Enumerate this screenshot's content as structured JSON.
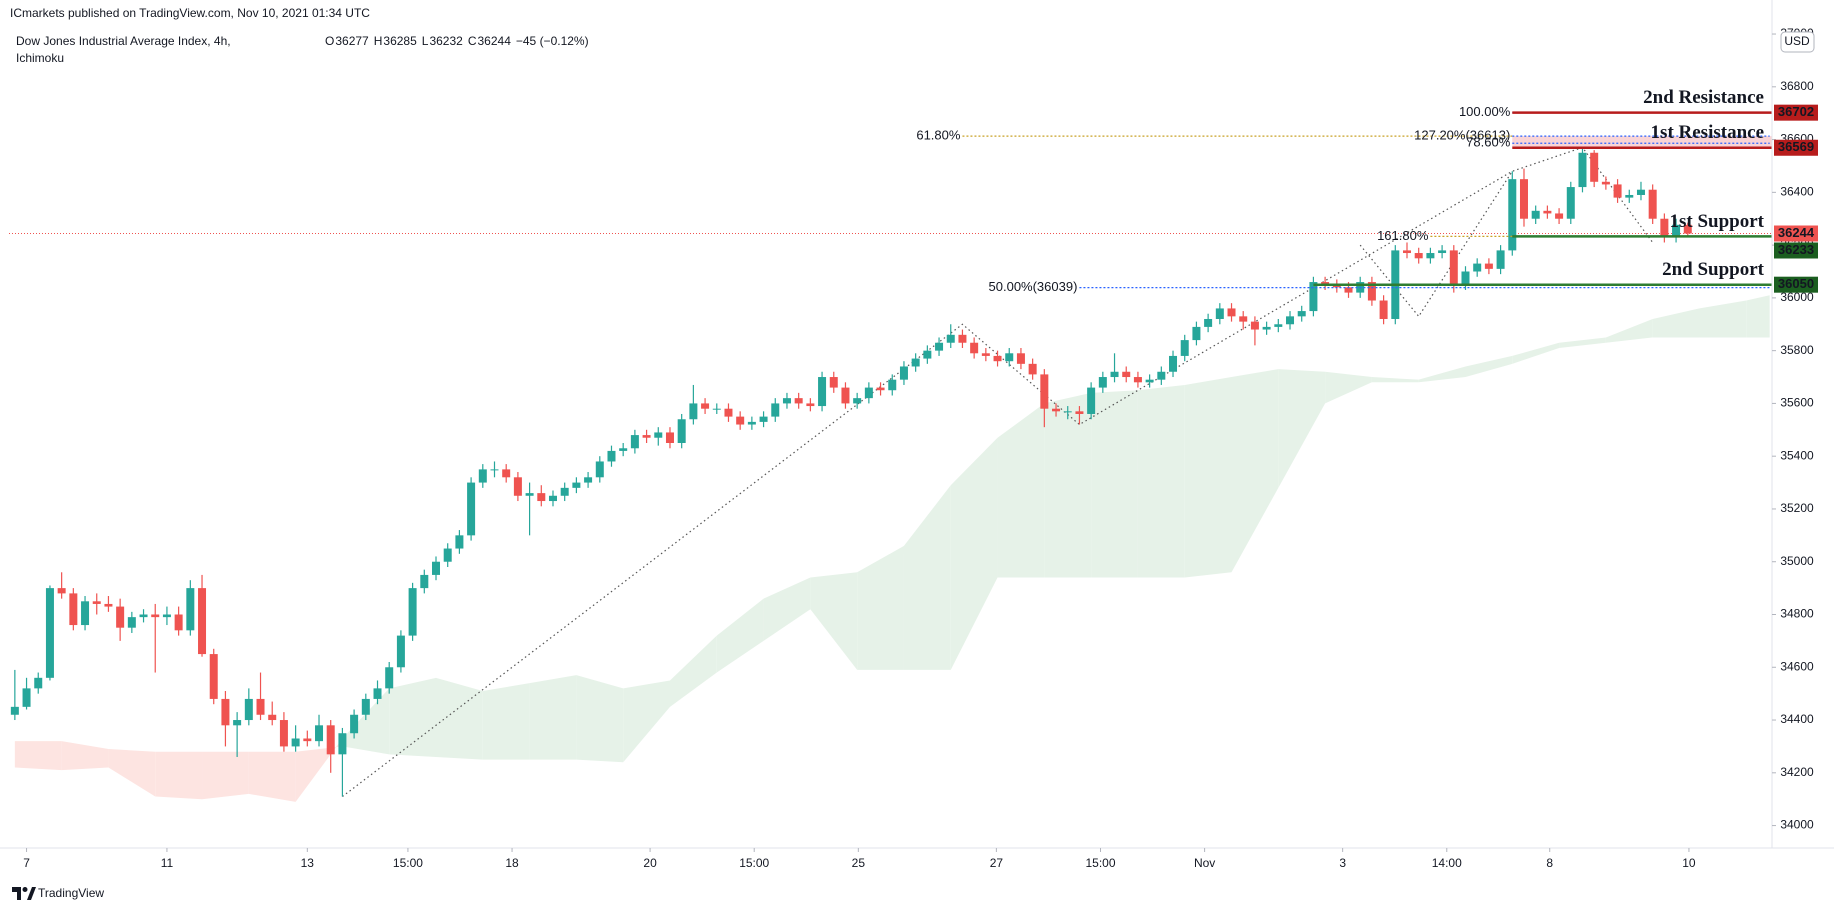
{
  "header": {
    "published": "ICmarkets published on TradingView.com, Nov 10, 2021 01:34 UTC",
    "symbol": "Dow Jones Industrial Average Index, 4h,",
    "indicator": "Ichimoku",
    "ohlc_letters": [
      "O",
      "H",
      "L",
      "C"
    ],
    "change": "−45 (−0.12%)",
    "currency": "USD",
    "footer": "TradingView"
  },
  "chart_data": {
    "type": "candlestick",
    "up_color": "#26a69a",
    "down_color": "#ef5350",
    "grid": false,
    "ylim": [
      33915,
      37129
    ],
    "yticks": [
      34000,
      34200,
      34400,
      34600,
      34800,
      35000,
      35200,
      35400,
      35600,
      35800,
      36000,
      36200,
      36400,
      36600,
      36800,
      37000
    ],
    "xlim": [
      -0.5,
      150.2
    ],
    "xticks": [
      {
        "value": 1,
        "label": "7"
      },
      {
        "value": 13,
        "label": "11"
      },
      {
        "value": 25,
        "label": "13"
      },
      {
        "value": 33.6,
        "label": "15:00"
      },
      {
        "value": 42.5,
        "label": "18"
      },
      {
        "value": 54.3,
        "label": "20"
      },
      {
        "value": 63.2,
        "label": "15:00"
      },
      {
        "value": 72.1,
        "label": "25"
      },
      {
        "value": 83.9,
        "label": "27"
      },
      {
        "value": 92.8,
        "label": "15:00"
      },
      {
        "value": 101.7,
        "label": "Nov"
      },
      {
        "value": 113.5,
        "label": "3"
      },
      {
        "value": 122.4,
        "label": "14:00"
      },
      {
        "value": 131.2,
        "label": "8"
      },
      {
        "value": 143.1,
        "label": "10"
      }
    ],
    "ohlc": [
      [
        34420,
        34590,
        34400,
        34450
      ],
      [
        34450,
        34560,
        34440,
        34520
      ],
      [
        34520,
        34580,
        34500,
        34560
      ],
      [
        34560,
        34910,
        34550,
        34900
      ],
      [
        34900,
        34960,
        34860,
        34880
      ],
      [
        34880,
        34900,
        34740,
        34760
      ],
      [
        34760,
        34870,
        34740,
        34850
      ],
      [
        34850,
        34880,
        34800,
        34840
      ],
      [
        34840,
        34870,
        34810,
        34830
      ],
      [
        34830,
        34860,
        34700,
        34750
      ],
      [
        34750,
        34810,
        34730,
        34790
      ],
      [
        34790,
        34820,
        34770,
        34800
      ],
      [
        34800,
        34840,
        34580,
        34790
      ],
      [
        34790,
        34830,
        34760,
        34800
      ],
      [
        34800,
        34830,
        34720,
        34740
      ],
      [
        34740,
        34930,
        34720,
        34900
      ],
      [
        34900,
        34950,
        34640,
        34650
      ],
      [
        34650,
        34670,
        34460,
        34480
      ],
      [
        34480,
        34510,
        34300,
        34380
      ],
      [
        34380,
        34430,
        34260,
        34400
      ],
      [
        34400,
        34520,
        34380,
        34480
      ],
      [
        34480,
        34580,
        34400,
        34420
      ],
      [
        34420,
        34470,
        34380,
        34400
      ],
      [
        34400,
        34430,
        34280,
        34300
      ],
      [
        34300,
        34380,
        34280,
        34330
      ],
      [
        34330,
        34360,
        34300,
        34320
      ],
      [
        34320,
        34420,
        34300,
        34380
      ],
      [
        34380,
        34400,
        34200,
        34270
      ],
      [
        34270,
        34370,
        34110,
        34350
      ],
      [
        34350,
        34440,
        34330,
        34420
      ],
      [
        34420,
        34500,
        34400,
        34480
      ],
      [
        34480,
        34550,
        34460,
        34520
      ],
      [
        34520,
        34620,
        34500,
        34600
      ],
      [
        34600,
        34740,
        34580,
        34720
      ],
      [
        34720,
        34920,
        34700,
        34900
      ],
      [
        34900,
        34970,
        34880,
        34950
      ],
      [
        34950,
        35020,
        34930,
        35000
      ],
      [
        35000,
        35070,
        34980,
        35050
      ],
      [
        35050,
        35120,
        35030,
        35100
      ],
      [
        35100,
        35320,
        35080,
        35300
      ],
      [
        35300,
        35370,
        35280,
        35350
      ],
      [
        35350,
        35380,
        35320,
        35350
      ],
      [
        35350,
        35370,
        35300,
        35320
      ],
      [
        35320,
        35340,
        35230,
        35250
      ],
      [
        35250,
        35300,
        35100,
        35260
      ],
      [
        35260,
        35290,
        35210,
        35230
      ],
      [
        35230,
        35270,
        35210,
        35250
      ],
      [
        35250,
        35300,
        35230,
        35280
      ],
      [
        35280,
        35320,
        35260,
        35300
      ],
      [
        35300,
        35340,
        35280,
        35320
      ],
      [
        35320,
        35400,
        35300,
        35380
      ],
      [
        35380,
        35440,
        35360,
        35420
      ],
      [
        35420,
        35450,
        35400,
        35430
      ],
      [
        35430,
        35500,
        35410,
        35480
      ],
      [
        35480,
        35500,
        35450,
        35470
      ],
      [
        35470,
        35510,
        35440,
        35490
      ],
      [
        35490,
        35510,
        35430,
        35450
      ],
      [
        35450,
        35560,
        35430,
        35540
      ],
      [
        35540,
        35670,
        35520,
        35600
      ],
      [
        35600,
        35620,
        35560,
        35580
      ],
      [
        35580,
        35600,
        35560,
        35580
      ],
      [
        35580,
        35600,
        35530,
        35550
      ],
      [
        35550,
        35570,
        35500,
        35520
      ],
      [
        35520,
        35550,
        35500,
        35530
      ],
      [
        35530,
        35570,
        35510,
        35550
      ],
      [
        35550,
        35620,
        35530,
        35600
      ],
      [
        35600,
        35640,
        35580,
        35620
      ],
      [
        35620,
        35640,
        35580,
        35600
      ],
      [
        35600,
        35620,
        35570,
        35590
      ],
      [
        35590,
        35720,
        35570,
        35700
      ],
      [
        35700,
        35720,
        35640,
        35660
      ],
      [
        35660,
        35680,
        35580,
        35600
      ],
      [
        35600,
        35640,
        35580,
        35620
      ],
      [
        35620,
        35680,
        35600,
        35660
      ],
      [
        35660,
        35680,
        35630,
        35650
      ],
      [
        35650,
        35710,
        35630,
        35690
      ],
      [
        35690,
        35760,
        35670,
        35740
      ],
      [
        35740,
        35790,
        35720,
        35770
      ],
      [
        35770,
        35820,
        35750,
        35800
      ],
      [
        35800,
        35850,
        35780,
        35830
      ],
      [
        35830,
        35900,
        35810,
        35860
      ],
      [
        35860,
        35880,
        35810,
        35830
      ],
      [
        35830,
        35850,
        35770,
        35790
      ],
      [
        35790,
        35810,
        35760,
        35780
      ],
      [
        35780,
        35800,
        35740,
        35760
      ],
      [
        35760,
        35810,
        35740,
        35790
      ],
      [
        35790,
        35810,
        35730,
        35750
      ],
      [
        35750,
        35770,
        35690,
        35710
      ],
      [
        35710,
        35730,
        35510,
        35580
      ],
      [
        35580,
        35600,
        35550,
        35570
      ],
      [
        35570,
        35590,
        35540,
        35570
      ],
      [
        35570,
        35590,
        35520,
        35560
      ],
      [
        35560,
        35680,
        35540,
        35660
      ],
      [
        35660,
        35720,
        35640,
        35700
      ],
      [
        35700,
        35790,
        35680,
        35720
      ],
      [
        35720,
        35740,
        35680,
        35700
      ],
      [
        35700,
        35720,
        35660,
        35680
      ],
      [
        35680,
        35710,
        35660,
        35690
      ],
      [
        35690,
        35740,
        35670,
        35720
      ],
      [
        35720,
        35800,
        35700,
        35780
      ],
      [
        35780,
        35860,
        35760,
        35840
      ],
      [
        35840,
        35910,
        35820,
        35890
      ],
      [
        35890,
        35940,
        35870,
        35920
      ],
      [
        35920,
        35980,
        35900,
        35960
      ],
      [
        35960,
        35980,
        35910,
        35930
      ],
      [
        35930,
        35950,
        35880,
        35910
      ],
      [
        35910,
        35930,
        35820,
        35880
      ],
      [
        35880,
        35910,
        35860,
        35890
      ],
      [
        35890,
        35920,
        35870,
        35900
      ],
      [
        35900,
        35950,
        35880,
        35930
      ],
      [
        35930,
        35970,
        35910,
        35950
      ],
      [
        35950,
        36080,
        35930,
        36060
      ],
      [
        36060,
        36080,
        36030,
        36050
      ],
      [
        36050,
        36070,
        36020,
        36040
      ],
      [
        36040,
        36060,
        36000,
        36020
      ],
      [
        36020,
        36080,
        36000,
        36060
      ],
      [
        36060,
        36080,
        35970,
        35990
      ],
      [
        35990,
        36010,
        35900,
        35920
      ],
      [
        35920,
        36200,
        35900,
        36180
      ],
      [
        36180,
        36210,
        36150,
        36170
      ],
      [
        36170,
        36190,
        36130,
        36150
      ],
      [
        36150,
        36190,
        36130,
        36170
      ],
      [
        36170,
        36200,
        36150,
        36180
      ],
      [
        36180,
        36200,
        36020,
        36050
      ],
      [
        36050,
        36120,
        36030,
        36100
      ],
      [
        36100,
        36150,
        36080,
        36130
      ],
      [
        36130,
        36150,
        36090,
        36110
      ],
      [
        36110,
        36200,
        36090,
        36180
      ],
      [
        36180,
        36480,
        36160,
        36450
      ],
      [
        36450,
        36490,
        36270,
        36300
      ],
      [
        36300,
        36350,
        36280,
        36330
      ],
      [
        36330,
        36350,
        36300,
        36320
      ],
      [
        36320,
        36340,
        36280,
        36300
      ],
      [
        36300,
        36440,
        36280,
        36420
      ],
      [
        36420,
        36570,
        36400,
        36550
      ],
      [
        36550,
        36560,
        36420,
        36440
      ],
      [
        36440,
        36460,
        36410,
        36430
      ],
      [
        36430,
        36450,
        36360,
        36380
      ],
      [
        36380,
        36410,
        36360,
        36390
      ],
      [
        36390,
        36440,
        36370,
        36410
      ],
      [
        36410,
        36430,
        36280,
        36300
      ],
      [
        36300,
        36320,
        36210,
        36230
      ],
      [
        36230,
        36300,
        36210,
        36277
      ],
      [
        36277,
        36285,
        36232,
        36244
      ]
    ],
    "ichimoku": {
      "bull_color": "#e6f2e8",
      "bear_color": "#fde4e1",
      "x": [
        0,
        4,
        8,
        12,
        16,
        20,
        24,
        28,
        32,
        36,
        40,
        44,
        48,
        52,
        56,
        60,
        64,
        68,
        72,
        76,
        80,
        84,
        88,
        92,
        96,
        100,
        104,
        108,
        112,
        116,
        120,
        124,
        128,
        132,
        136,
        140,
        144,
        148,
        150
      ],
      "span_a": [
        34220,
        34210,
        34220,
        34110,
        34100,
        34120,
        34090,
        34330,
        34520,
        34560,
        34510,
        34540,
        34570,
        34520,
        34550,
        34720,
        34860,
        34940,
        34960,
        35060,
        35290,
        35470,
        35600,
        35640,
        35650,
        35670,
        35700,
        35730,
        35720,
        35700,
        35690,
        35740,
        35780,
        35830,
        35850,
        35920,
        35960,
        35990,
        36010
      ],
      "span_b": [
        34320,
        34320,
        34290,
        34280,
        34280,
        34280,
        34280,
        34300,
        34270,
        34260,
        34250,
        34250,
        34250,
        34240,
        34450,
        34580,
        34700,
        34820,
        34590,
        34590,
        34590,
        34940,
        34940,
        34940,
        34940,
        34940,
        34960,
        35280,
        35600,
        35680,
        35680,
        35700,
        35750,
        35810,
        35830,
        35850,
        35850,
        35850,
        35850
      ]
    },
    "drawings": [
      {
        "color": "#555555",
        "x": [
          28,
          81,
          91,
          128
        ],
        "y": [
          34110,
          35900,
          35520,
          36480
        ]
      },
      {
        "color": "#555555",
        "x": [
          115,
          120,
          128,
          134,
          140
        ],
        "y": [
          36200,
          35930,
          36480,
          36570,
          36210
        ]
      }
    ],
    "fib": [
      {
        "label": "61.80%",
        "value": 36613,
        "color": "#c9a227",
        "x0": 81,
        "x1": 128
      },
      {
        "label": "100.00%",
        "value": 36702,
        "color": "#2962ff",
        "x0": 128,
        "x1": 150
      },
      {
        "label": "127.20%(36613)",
        "value": 36613,
        "color": "#2962ff",
        "x0": 128,
        "x1": 150
      },
      {
        "label": "78.60%",
        "value": 36586,
        "color": "#2962ff",
        "x0": 128,
        "x1": 150
      },
      {
        "label": "161.80%",
        "value": 36233,
        "color": "#c9a227",
        "x0": 121,
        "x1": 128
      },
      {
        "label": "50.00%(36039)",
        "value": 36039,
        "color": "#2962ff",
        "x0": 91,
        "x1": 150
      }
    ],
    "levels": [
      {
        "name": "2nd Resistance",
        "value": 36702,
        "color": "#b71c1c",
        "x0": 128
      },
      {
        "name": "1st Resistance",
        "value": 36569,
        "color": "#b71c1c",
        "x0": 128,
        "zone_top": 36613,
        "zone_color": "#f8c9cc"
      },
      {
        "name": "1st Support",
        "value": 36233,
        "color": "#2e7d32",
        "badge_color": "#1b5e20",
        "x0": 128
      },
      {
        "name": "2nd Support",
        "value": 36050,
        "color": "#2e7d32",
        "badge_color": "#1b5e20",
        "x0": 111
      }
    ],
    "last_price_color": "#ef5350"
  }
}
